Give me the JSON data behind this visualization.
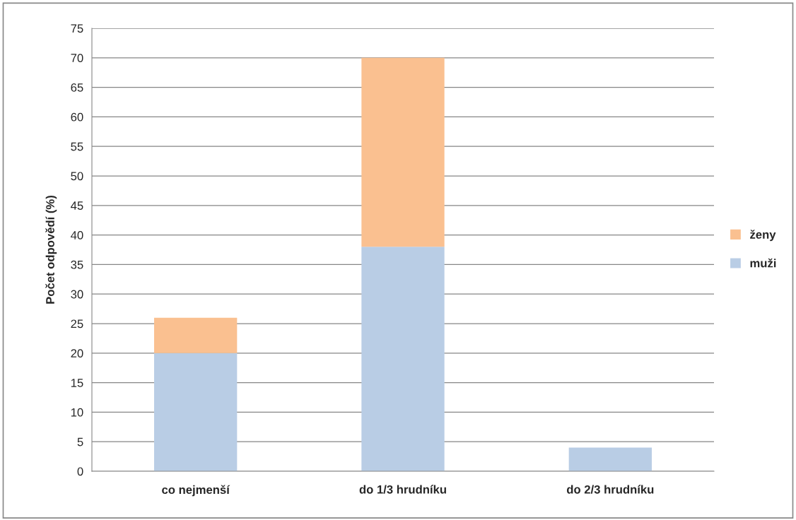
{
  "chart_data": {
    "type": "bar",
    "stacked": true,
    "ylabel": "Počet odpovědí (%)",
    "categories": [
      "co nejmenší",
      "do 1/3 hrudníku",
      "do 2/3 hrudníku"
    ],
    "series": [
      {
        "name": "muži",
        "color": "#b9cde5",
        "values": [
          20,
          38,
          4
        ]
      },
      {
        "name": "ženy",
        "color": "#fac090",
        "values": [
          6,
          32,
          null
        ]
      }
    ],
    "ylim": [
      0,
      75
    ],
    "yticks": [
      0,
      5,
      10,
      15,
      20,
      25,
      30,
      35,
      40,
      45,
      50,
      55,
      60,
      65,
      70,
      75
    ],
    "grid": "y",
    "legend": "right"
  }
}
